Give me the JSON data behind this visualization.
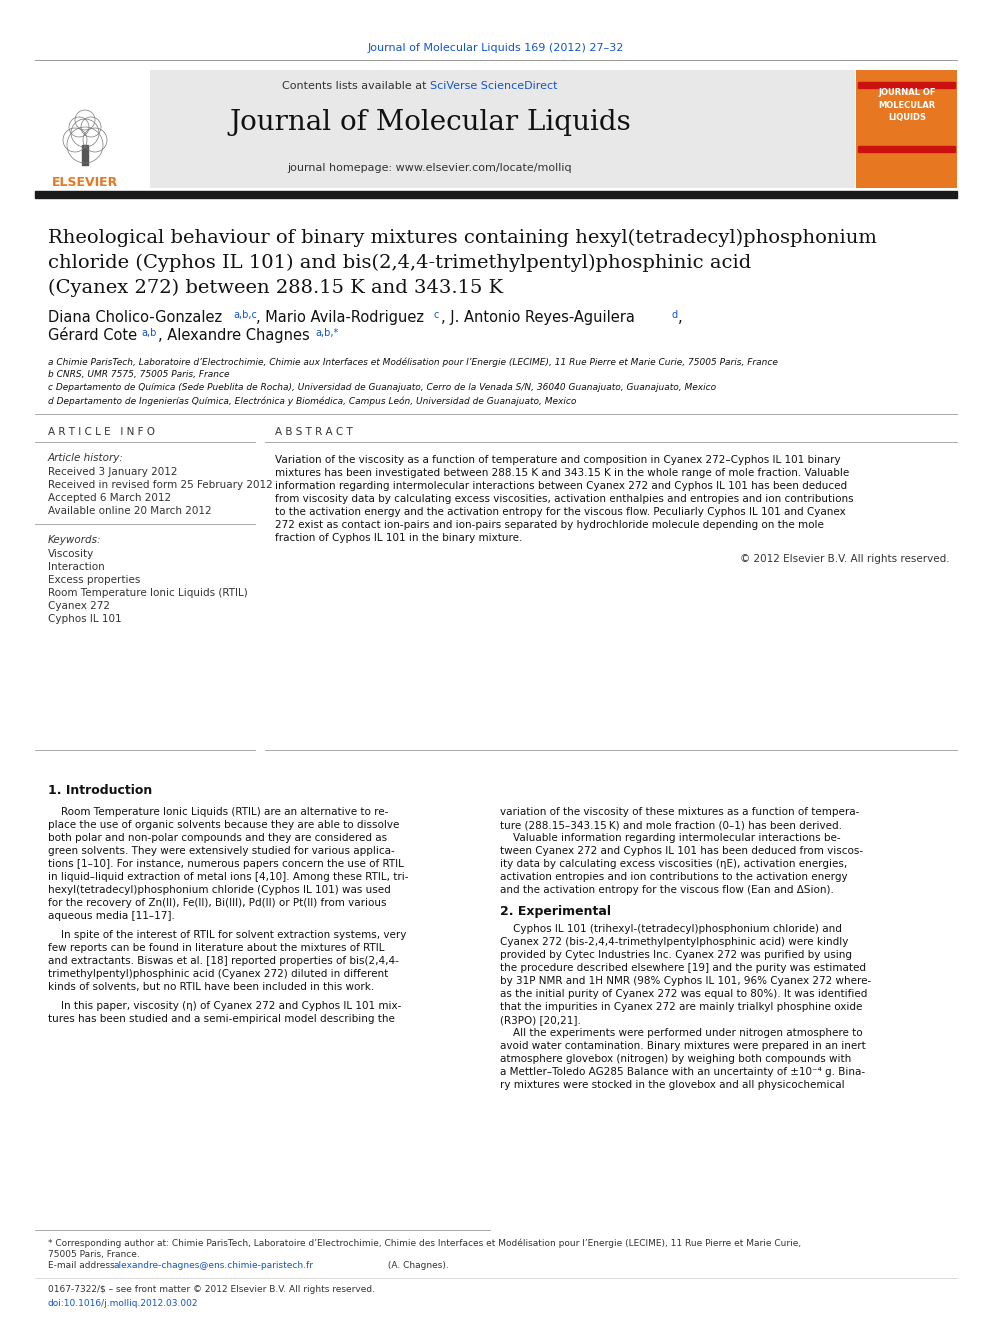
{
  "page_bg": "#ffffff",
  "header_citation": "Journal of Molecular Liquids 169 (2012) 27–32",
  "header_citation_color": "#1155cc",
  "journal_name": "Journal of Molecular Liquids",
  "journal_homepage": "journal homepage: www.elsevier.com/locate/molliq",
  "contents_text": "Contents lists available at ",
  "sciverse_text": "SciVerse ScienceDirect",
  "sciverse_color": "#1155cc",
  "header_bg": "#e8e8e8",
  "title_line1": "Rheological behaviour of binary mixtures containing hexyl(tetradecyl)phosphonium",
  "title_line2": "chloride (Cyphos IL 101) and bis(2,4,4-trimethylpentyl)phosphinic acid",
  "title_line3": "(Cyanex 272) between 288.15 K and 343.15 K",
  "article_info_header": "A R T I C L E   I N F O",
  "abstract_header": "A B S T R A C T",
  "history_label": "Article history:",
  "received": "Received 3 January 2012",
  "received_revised": "Received in revised form 25 February 2012",
  "accepted": "Accepted 6 March 2012",
  "available": "Available online 20 March 2012",
  "keywords_label": "Keywords:",
  "keywords": [
    "Viscosity",
    "Interaction",
    "Excess properties",
    "Room Temperature Ionic Liquids (RTIL)",
    "Cyanex 272",
    "Cyphos IL 101"
  ],
  "abstract_lines": [
    "Variation of the viscosity as a function of temperature and composition in Cyanex 272–Cyphos IL 101 binary",
    "mixtures has been investigated between 288.15 K and 343.15 K in the whole range of mole fraction. Valuable",
    "information regarding intermolecular interactions between Cyanex 272 and Cyphos IL 101 has been deduced",
    "from viscosity data by calculating excess viscosities, activation enthalpies and entropies and ion contributions",
    "to the activation energy and the activation entropy for the viscous flow. Peculiarly Cyphos IL 101 and Cyanex",
    "272 exist as contact ion-pairs and ion-pairs separated by hydrochloride molecule depending on the mole",
    "fraction of Cyphos IL 101 in the binary mixture."
  ],
  "copyright": "© 2012 Elsevier B.V. All rights reserved.",
  "intro_header": "1. Introduction",
  "intro_col1_lines": [
    "    Room Temperature Ionic Liquids (RTIL) are an alternative to re-",
    "place the use of organic solvents because they are able to dissolve",
    "both polar and non-polar compounds and they are considered as",
    "green solvents. They were extensively studied for various applica-",
    "tions [1–10]. For instance, numerous papers concern the use of RTIL",
    "in liquid–liquid extraction of metal ions [4,10]. Among these RTIL, tri-",
    "hexyl(tetradecyl)phosphonium chloride (Cyphos IL 101) was used",
    "for the recovery of Zn(II), Fe(II), Bi(III), Pd(II) or Pt(II) from various",
    "aqueous media [11–17].",
    "",
    "    In spite of the interest of RTIL for solvent extraction systems, very",
    "few reports can be found in literature about the mixtures of RTIL",
    "and extractants. Biswas et al. [18] reported properties of bis(2,4,4-",
    "trimethylpentyl)phosphinic acid (Cyanex 272) diluted in different",
    "kinds of solvents, but no RTIL have been included in this work.",
    "",
    "    In this paper, viscosity (η) of Cyanex 272 and Cyphos IL 101 mix-",
    "tures has been studied and a semi-empirical model describing the"
  ],
  "intro_col2_lines": [
    "variation of the viscosity of these mixtures as a function of tempera-",
    "ture (288.15–343.15 K) and mole fraction (0–1) has been derived.",
    "    Valuable information regarding intermolecular interactions be-",
    "tween Cyanex 272 and Cyphos IL 101 has been deduced from viscos-",
    "ity data by calculating excess viscosities (ηE), activation energies,",
    "activation entropies and ion contributions to the activation energy",
    "and the activation entropy for the viscous flow (Ean and ΔSion)."
  ],
  "section2_header": "2. Experimental",
  "section2_col2_lines": [
    "    Cyphos IL 101 (trihexyl-(tetradecyl)phosphonium chloride) and",
    "Cyanex 272 (bis-2,4,4-trimethylpentylphosphinic acid) were kindly",
    "provided by Cytec Industries Inc. Cyanex 272 was purified by using",
    "the procedure described elsewhere [19] and the purity was estimated",
    "by 31P NMR and 1H NMR (98% Cyphos IL 101, 96% Cyanex 272 where-",
    "as the initial purity of Cyanex 272 was equal to 80%). It was identified",
    "that the impurities in Cyanex 272 are mainly trialkyl phosphine oxide",
    "(R3PO) [20,21].",
    "    All the experiments were performed under nitrogen atmosphere to",
    "avoid water contamination. Binary mixtures were prepared in an inert",
    "atmosphere glovebox (nitrogen) by weighing both compounds with",
    "a Mettler–Toledo AG285 Balance with an uncertainty of ±10⁻⁴ g. Bina-",
    "ry mixtures were stocked in the glovebox and all physicochemical"
  ],
  "affil_a": "a Chimie ParisTech, Laboratoire d’Electrochimie, Chimie aux Interfaces et Modélisation pour l’Energie (LECIME), 11 Rue Pierre et Marie Curie, 75005 Paris, France",
  "affil_b": "b CNRS, UMR 7575, 75005 Paris, France",
  "affil_c": "c Departamento de Química (Sede Pueblita de Rocha), Universidad de Guanajuato, Cerro de la Venada S/N, 36040 Guanajuato, Guanajuato, Mexico",
  "affil_d": "d Departamento de Ingenierías Química, Electrónica y Biomédica, Campus León, Universidad de Guanajuato, Mexico",
  "footnote1": "* Corresponding author at: Chimie ParisTech, Laboratoire d’Electrochimie, Chimie des Interfaces et Modélisation pour l’Energie (LECIME), 11 Rue Pierre et Marie Curie,",
  "footnote1b": "75005 Paris, France.",
  "footnote_email_pre": "E-mail address: ",
  "footnote_email_link": "alexandre-chagnes@ens.chimie-paristech.fr",
  "footnote_email_post": " (A. Chagnes).",
  "issn": "0167-7322/$ – see front matter © 2012 Elsevier B.V. All rights reserved.",
  "doi": "doi:10.1016/j.molliq.2012.03.002",
  "elsevier_color": "#e87722",
  "thick_bar_color": "#1a1a1a"
}
